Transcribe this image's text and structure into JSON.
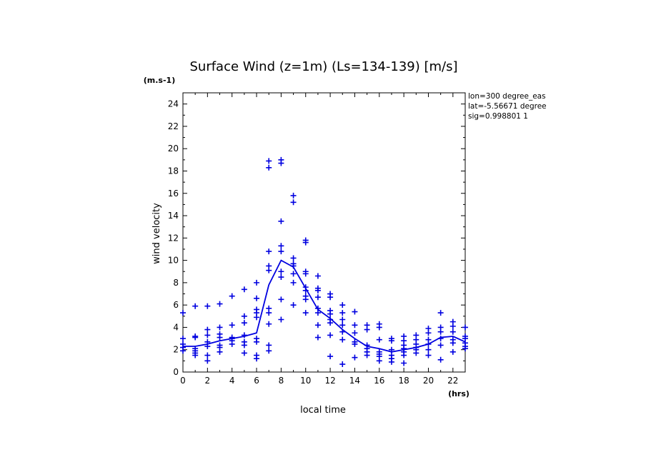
{
  "chart_data": {
    "type": "scatter",
    "title": "Surface Wind (z=1m) (Ls=134-139) [m/s]",
    "ylabel": "wind velocity",
    "yunit": "(m.s-1)",
    "xlabel": "local time",
    "xunit": "(hrs)",
    "xlim": [
      0,
      23
    ],
    "ylim": [
      0,
      25
    ],
    "xticks": [
      0,
      2,
      4,
      6,
      8,
      10,
      12,
      14,
      16,
      18,
      20,
      22
    ],
    "yticks": [
      0,
      2,
      4,
      6,
      8,
      10,
      12,
      14,
      16,
      18,
      20,
      22,
      24
    ],
    "annotations": [
      "lon=300 degree_eas",
      "lat=-5.56671 degree",
      "sig=0.998801 1"
    ],
    "color": "#0000e0",
    "scatter": [
      [
        0,
        5.3
      ],
      [
        0,
        3.0
      ],
      [
        0,
        2.5
      ],
      [
        0,
        2.2
      ],
      [
        0,
        1.9
      ],
      [
        1,
        5.9
      ],
      [
        1,
        3.2
      ],
      [
        1,
        3.1
      ],
      [
        1,
        2.1
      ],
      [
        1,
        1.9
      ],
      [
        1,
        1.7
      ],
      [
        1,
        1.5
      ],
      [
        2,
        5.9
      ],
      [
        2,
        3.8
      ],
      [
        2,
        3.3
      ],
      [
        2,
        2.7
      ],
      [
        2,
        2.3
      ],
      [
        2,
        1.5
      ],
      [
        2,
        1.0
      ],
      [
        3,
        6.1
      ],
      [
        3,
        4.0
      ],
      [
        3,
        3.4
      ],
      [
        3,
        3.1
      ],
      [
        3,
        2.4
      ],
      [
        3,
        2.2
      ],
      [
        3,
        1.8
      ],
      [
        4,
        6.8
      ],
      [
        4,
        4.2
      ],
      [
        4,
        3.1
      ],
      [
        4,
        3.0
      ],
      [
        4,
        2.8
      ],
      [
        4,
        2.5
      ],
      [
        5,
        7.4
      ],
      [
        5,
        5.0
      ],
      [
        5,
        4.4
      ],
      [
        5,
        3.3
      ],
      [
        5,
        2.7
      ],
      [
        5,
        2.4
      ],
      [
        5,
        1.7
      ],
      [
        6,
        8.0
      ],
      [
        6,
        6.6
      ],
      [
        6,
        5.6
      ],
      [
        6,
        5.3
      ],
      [
        6,
        4.9
      ],
      [
        6,
        3.0
      ],
      [
        6,
        2.7
      ],
      [
        6,
        1.5
      ],
      [
        6,
        1.2
      ],
      [
        7,
        18.9
      ],
      [
        7,
        18.3
      ],
      [
        7,
        10.8
      ],
      [
        7,
        9.5
      ],
      [
        7,
        9.1
      ],
      [
        7,
        5.7
      ],
      [
        7,
        5.3
      ],
      [
        7,
        4.3
      ],
      [
        7,
        2.4
      ],
      [
        7,
        1.9
      ],
      [
        8,
        19.0
      ],
      [
        8,
        18.7
      ],
      [
        8,
        13.5
      ],
      [
        8,
        11.3
      ],
      [
        8,
        10.8
      ],
      [
        8,
        9.0
      ],
      [
        8,
        8.5
      ],
      [
        8,
        6.5
      ],
      [
        8,
        4.7
      ],
      [
        9,
        15.8
      ],
      [
        9,
        15.2
      ],
      [
        9,
        10.2
      ],
      [
        9,
        9.7
      ],
      [
        9,
        9.5
      ],
      [
        9,
        8.8
      ],
      [
        9,
        8.0
      ],
      [
        9,
        6.0
      ],
      [
        10,
        11.8
      ],
      [
        10,
        11.6
      ],
      [
        10,
        9.0
      ],
      [
        10,
        8.8
      ],
      [
        10,
        7.6
      ],
      [
        10,
        7.3
      ],
      [
        10,
        6.8
      ],
      [
        10,
        6.5
      ],
      [
        10,
        5.3
      ],
      [
        11,
        8.6
      ],
      [
        11,
        7.5
      ],
      [
        11,
        7.3
      ],
      [
        11,
        6.7
      ],
      [
        11,
        5.7
      ],
      [
        11,
        5.3
      ],
      [
        11,
        4.2
      ],
      [
        11,
        3.1
      ],
      [
        12,
        7.0
      ],
      [
        12,
        6.7
      ],
      [
        12,
        5.5
      ],
      [
        12,
        5.2
      ],
      [
        12,
        4.7
      ],
      [
        12,
        4.4
      ],
      [
        12,
        3.3
      ],
      [
        12,
        1.4
      ],
      [
        13,
        6.0
      ],
      [
        13,
        5.3
      ],
      [
        13,
        4.7
      ],
      [
        13,
        4.2
      ],
      [
        13,
        3.6
      ],
      [
        13,
        2.9
      ],
      [
        13,
        0.7
      ],
      [
        14,
        5.4
      ],
      [
        14,
        4.2
      ],
      [
        14,
        3.5
      ],
      [
        14,
        2.7
      ],
      [
        14,
        2.5
      ],
      [
        14,
        1.3
      ],
      [
        15,
        4.2
      ],
      [
        15,
        3.8
      ],
      [
        15,
        2.4
      ],
      [
        15,
        2.1
      ],
      [
        15,
        1.8
      ],
      [
        15,
        1.5
      ],
      [
        16,
        4.3
      ],
      [
        16,
        4.0
      ],
      [
        16,
        2.9
      ],
      [
        16,
        1.8
      ],
      [
        16,
        1.6
      ],
      [
        16,
        1.4
      ],
      [
        16,
        1.0
      ],
      [
        17,
        3.0
      ],
      [
        17,
        2.8
      ],
      [
        17,
        2.0
      ],
      [
        17,
        1.5
      ],
      [
        17,
        1.2
      ],
      [
        17,
        0.9
      ],
      [
        18,
        3.2
      ],
      [
        18,
        2.8
      ],
      [
        18,
        2.4
      ],
      [
        18,
        2.1
      ],
      [
        18,
        1.8
      ],
      [
        18,
        1.5
      ],
      [
        18,
        0.8
      ],
      [
        19,
        3.3
      ],
      [
        19,
        2.9
      ],
      [
        19,
        2.5
      ],
      [
        19,
        2.2
      ],
      [
        19,
        2.0
      ],
      [
        19,
        1.7
      ],
      [
        20,
        3.9
      ],
      [
        20,
        3.5
      ],
      [
        20,
        2.9
      ],
      [
        20,
        2.5
      ],
      [
        20,
        2.0
      ],
      [
        20,
        1.5
      ],
      [
        21,
        5.3
      ],
      [
        21,
        4.0
      ],
      [
        21,
        3.6
      ],
      [
        21,
        3.0
      ],
      [
        21,
        2.4
      ],
      [
        21,
        1.1
      ],
      [
        22,
        4.5
      ],
      [
        22,
        4.1
      ],
      [
        22,
        3.6
      ],
      [
        22,
        2.9
      ],
      [
        22,
        2.6
      ],
      [
        22,
        1.8
      ],
      [
        23,
        4.0
      ],
      [
        23,
        3.2
      ],
      [
        23,
        3.0
      ],
      [
        23,
        2.6
      ],
      [
        23,
        2.3
      ],
      [
        23,
        2.1
      ]
    ],
    "mean_line": {
      "x": [
        0,
        1,
        2,
        3,
        4,
        5,
        6,
        7,
        8,
        9,
        10,
        11,
        12,
        13,
        14,
        15,
        16,
        17,
        18,
        19,
        20,
        21,
        22,
        23
      ],
      "y": [
        2.3,
        2.3,
        2.5,
        2.8,
        3.0,
        3.2,
        3.5,
        7.8,
        10.0,
        9.4,
        7.5,
        5.6,
        4.8,
        3.8,
        3.0,
        2.3,
        2.1,
        1.8,
        2.0,
        2.2,
        2.5,
        3.1,
        3.2,
        2.7
      ]
    }
  }
}
